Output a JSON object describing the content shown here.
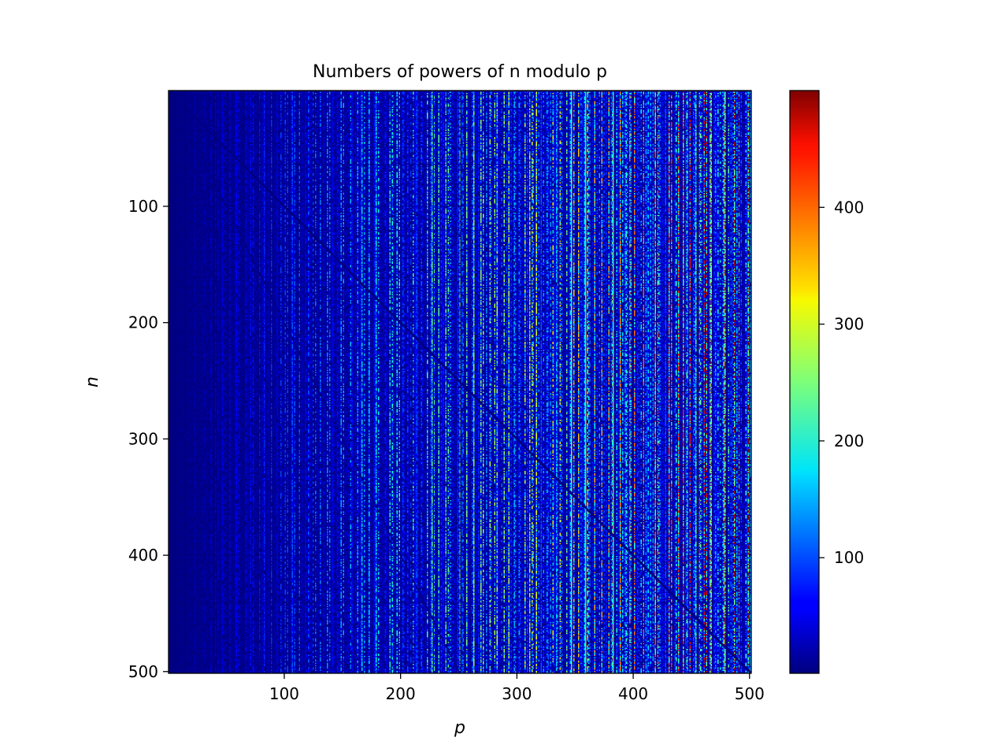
{
  "chart_data": {
    "type": "heatmap",
    "title": "Numbers of powers of n modulo p",
    "xlabel": "p",
    "ylabel": "n",
    "x_range": [
      1,
      501
    ],
    "y_range": [
      1,
      501
    ],
    "y_inverted": true,
    "x_ticks": [
      100,
      200,
      300,
      400,
      500
    ],
    "y_ticks": [
      100,
      200,
      300,
      400,
      500
    ],
    "x_tick_labels": [
      "100",
      "200",
      "300",
      "400",
      "500"
    ],
    "y_tick_labels": [
      "100",
      "200",
      "300",
      "400",
      "500"
    ],
    "colormap": "jet",
    "value_range": [
      1,
      500
    ],
    "colorbar": {
      "ticks": [
        100,
        200,
        300,
        400
      ],
      "tick_labels": [
        "100",
        "200",
        "300",
        "400"
      ],
      "placement": "right"
    },
    "cell_value_rule": "number of distinct values of n^k mod p (k = 1, 2, 3, ...), n = 1..500, p = 1..500",
    "grid": false
  }
}
